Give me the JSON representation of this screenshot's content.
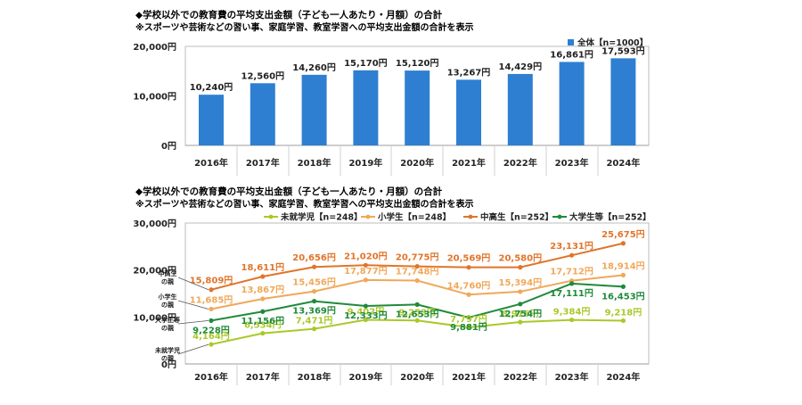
{
  "chart_data": [
    {
      "type": "bar",
      "title": "◆学校以外での教育費の平均支出金額（子ども一人あたり・月額）の合計",
      "subtitle": "※スポーツや芸術などの習い事、家庭学習、教室学習への平均支出金額の合計を表示",
      "categories": [
        "2016年",
        "2017年",
        "2018年",
        "2019年",
        "2020年",
        "2021年",
        "2022年",
        "2023年",
        "2024年"
      ],
      "series": [
        {
          "name": "全体【n=1000】",
          "color": "#2e7fd1",
          "values": [
            10240,
            12560,
            14260,
            15170,
            15120,
            13267,
            14429,
            16861,
            17593
          ],
          "labels": [
            "10,240円",
            "12,560円",
            "14,260円",
            "15,170円",
            "15,120円",
            "13,267円",
            "14,429円",
            "16,861円",
            "17,593円"
          ]
        }
      ],
      "y_ticks": [
        {
          "value": 0,
          "label": "0円"
        },
        {
          "value": 10000,
          "label": "10,000円"
        },
        {
          "value": 20000,
          "label": "20,000円"
        }
      ],
      "ylim": [
        0,
        20000
      ],
      "grid": false,
      "legend": "top-right"
    },
    {
      "type": "line",
      "title": "◆学校以外での教育費の平均支出金額（子ども一人あたり・月額）の合計",
      "subtitle": "※スポーツや芸術などの習い事、家庭学習、教室学習への平均支出金額の合計を表示",
      "categories": [
        "2016年",
        "2017年",
        "2018年",
        "2019年",
        "2020年",
        "2021年",
        "2022年",
        "2023年",
        "2024年"
      ],
      "series": [
        {
          "name": "未就学児【n=248】",
          "color": "#a9c92a",
          "side_label": [
            "未就学児",
            "の親"
          ],
          "values": [
            4164,
            6534,
            7471,
            9402,
            9253,
            7797,
            8916,
            9384,
            9218
          ],
          "labels": [
            "4,164円",
            "6,534円",
            "7,471円",
            "9,402円",
            "9,253円",
            "7,797円",
            "8,916円",
            "9,384円",
            "9,218円"
          ]
        },
        {
          "name": "小学生【n=248】",
          "color": "#f0a85a",
          "side_label": [
            "小学生",
            "の親"
          ],
          "values": [
            11685,
            13867,
            15456,
            17877,
            17748,
            14760,
            15394,
            17712,
            18914
          ],
          "labels": [
            "11,685円",
            "13,867円",
            "15,456円",
            "17,877円",
            "17,748円",
            "14,760円",
            "15,394円",
            "17,712円",
            "18,914円"
          ]
        },
        {
          "name": "中高生【n=252】",
          "color": "#e0752a",
          "side_label": [
            "中高生",
            "の親"
          ],
          "values": [
            15809,
            18611,
            20656,
            21020,
            20775,
            20569,
            20580,
            23131,
            25675
          ],
          "labels": [
            "15,809円",
            "18,611円",
            "20,656円",
            "21,020円",
            "20,775円",
            "20,569円",
            "20,580円",
            "23,131円",
            "25,675円"
          ]
        },
        {
          "name": "大学生等【n=252】",
          "color": "#1f8a3a",
          "side_label": [
            "大学生等",
            "の親"
          ],
          "values": [
            9228,
            11156,
            13369,
            12333,
            12653,
            9881,
            12754,
            17111,
            16453
          ],
          "labels": [
            "9,228円",
            "11,156円",
            "13,369円",
            "12,333円",
            "12,653円",
            "9,881円",
            "12,754円",
            "17,111円",
            "16,453円"
          ]
        }
      ],
      "y_ticks": [
        {
          "value": 0,
          "label": "0円"
        },
        {
          "value": 10000,
          "label": "10,000円"
        },
        {
          "value": 20000,
          "label": "20,000円"
        },
        {
          "value": 30000,
          "label": "30,000円"
        }
      ],
      "ylim": [
        0,
        30000
      ],
      "grid": false,
      "legend": "top"
    }
  ]
}
